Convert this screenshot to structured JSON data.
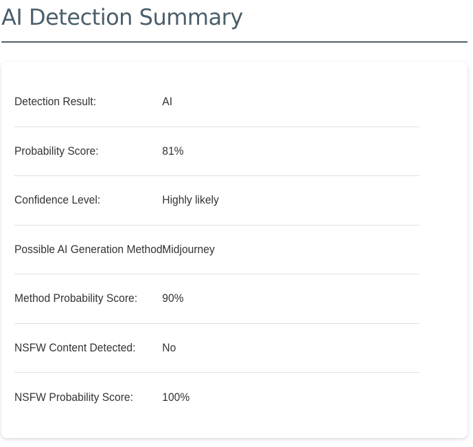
{
  "header": {
    "title": "AI Detection Summary"
  },
  "summary": {
    "rows": [
      {
        "label": "Detection Result:",
        "value": "AI"
      },
      {
        "label": "Probability Score:",
        "value": "81%"
      },
      {
        "label": "Confidence Level:",
        "value": "Highly likely"
      },
      {
        "label": "Possible AI Generation Method:",
        "value": "Midjourney"
      },
      {
        "label": "Method Probability Score:",
        "value": "90%"
      },
      {
        "label": "NSFW Content Detected:",
        "value": "No"
      },
      {
        "label": "NSFW Probability Score:",
        "value": "100%"
      }
    ]
  },
  "colors": {
    "title": "#4b5e6b",
    "rule": "#4e5f6b",
    "divider": "#e0e0e0",
    "text": "#333333"
  }
}
